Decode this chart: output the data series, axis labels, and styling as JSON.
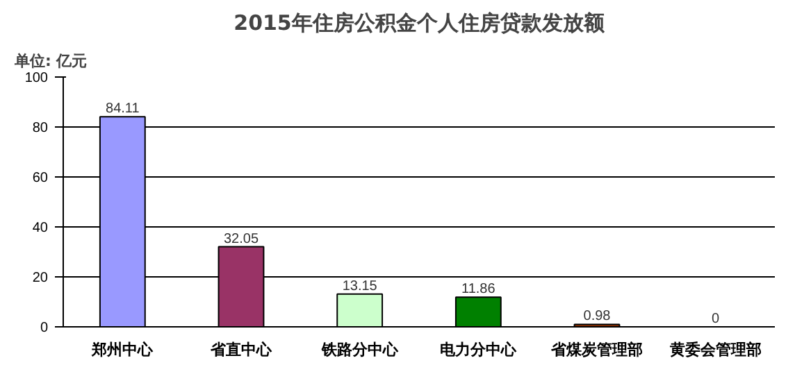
{
  "chart_data": {
    "type": "bar",
    "title": "2015年住房公积金个人住房贷款发放额",
    "annotations": [
      "单位: 亿元"
    ],
    "categories": [
      "郑州中心",
      "省直中心",
      "铁路分中心",
      "电力分中心",
      "省煤炭管理部",
      "黄委会管理部"
    ],
    "values": [
      84.11,
      32.05,
      13.15,
      11.86,
      0.98,
      0
    ],
    "colors": [
      "#9999ff",
      "#993366",
      "#ccffcc",
      "#008000",
      "#993300",
      "#000000"
    ],
    "ylim": [
      0,
      100
    ],
    "yticks": [
      0,
      20,
      40,
      60,
      80,
      100
    ],
    "grid": "y",
    "data_labels": true
  }
}
